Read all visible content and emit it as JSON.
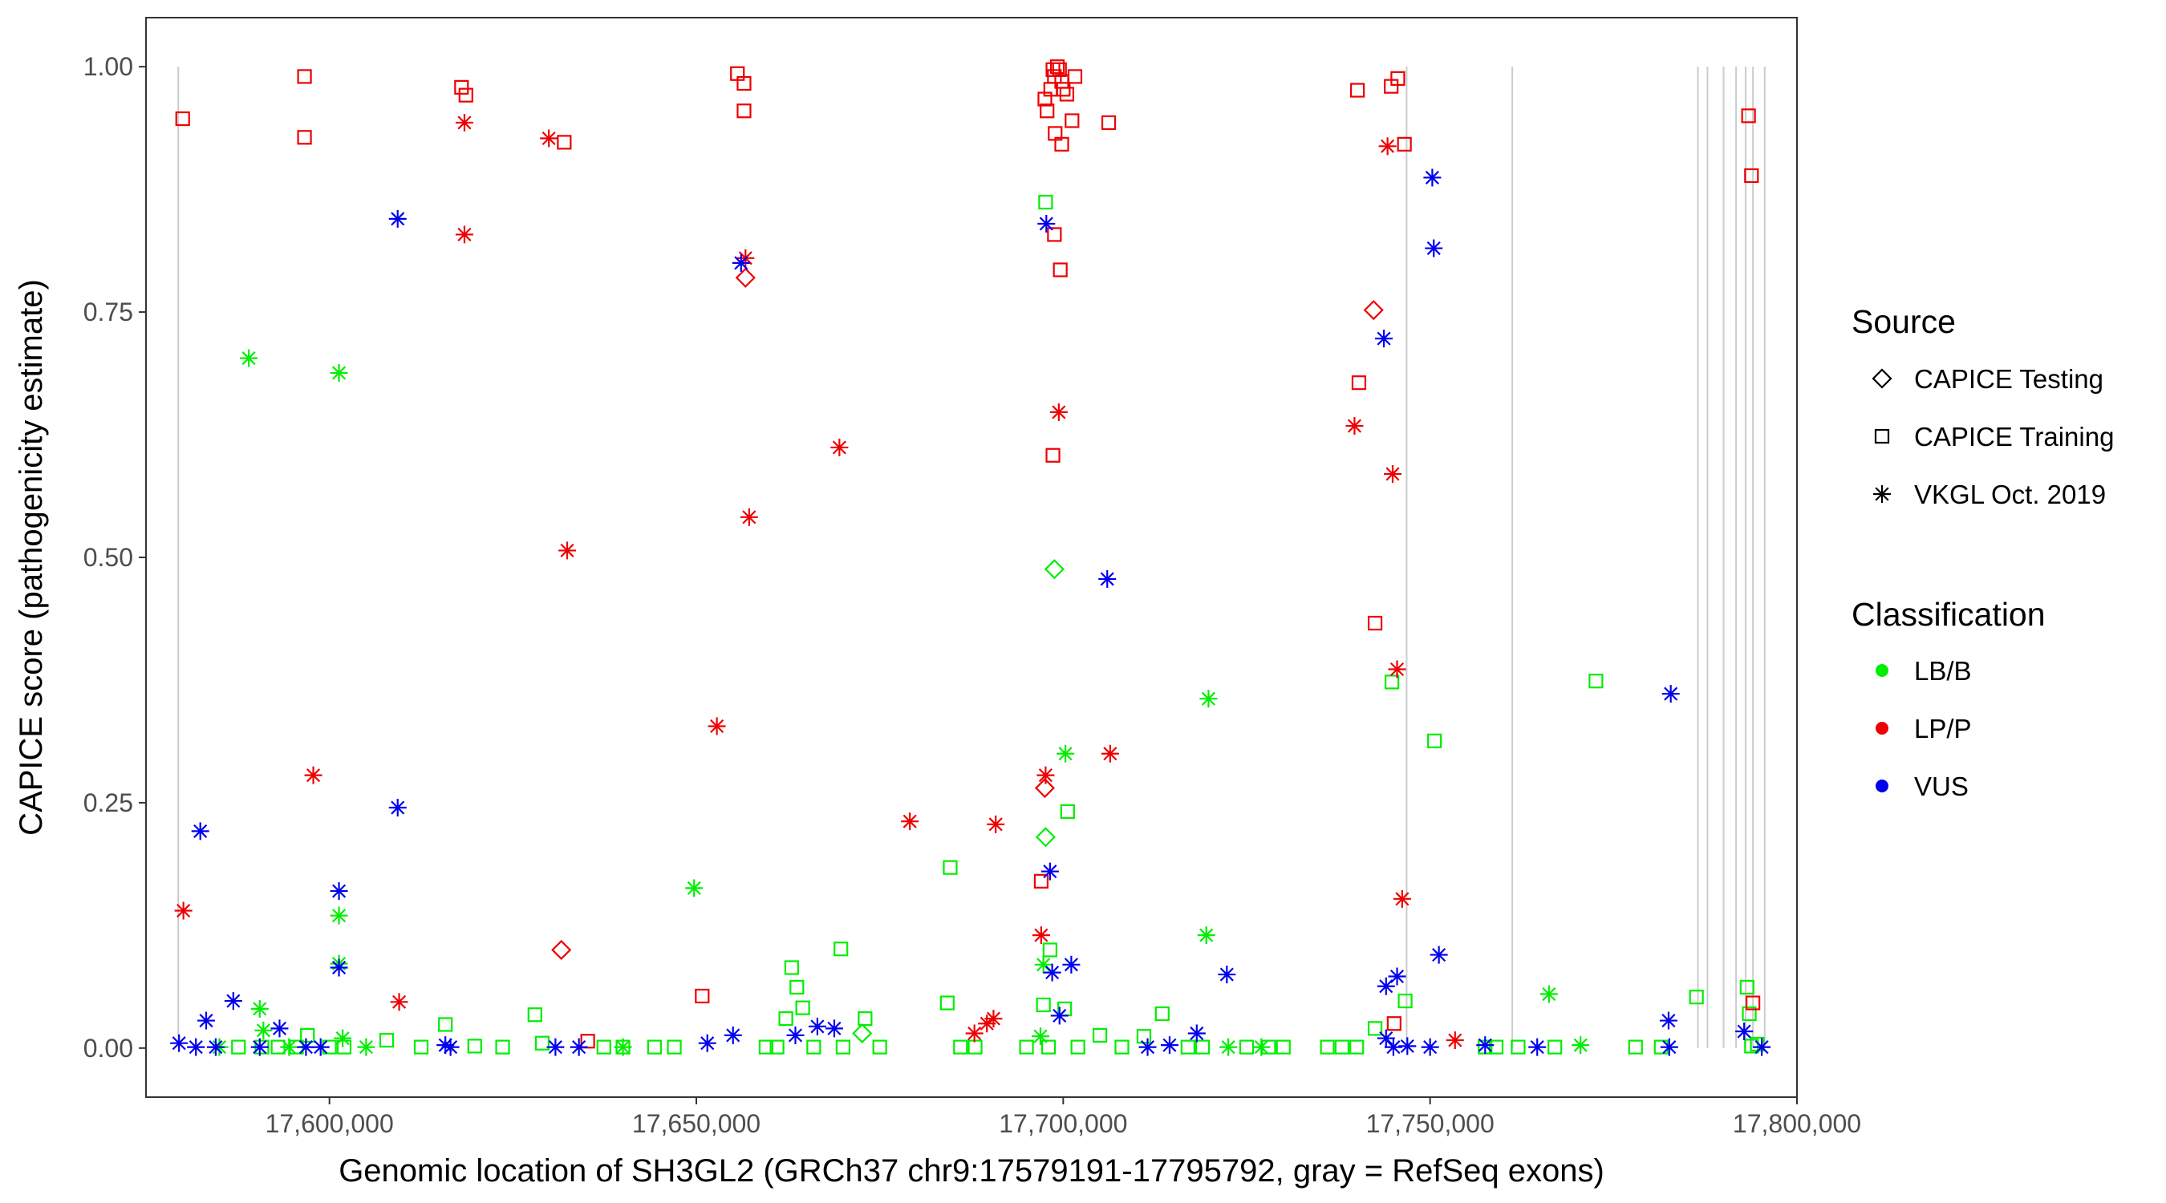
{
  "chart_data": {
    "type": "scatter",
    "title": "",
    "xlabel": "Genomic location of SH3GL2 (GRCh37 chr9:17579191-17795792, gray = RefSeq exons)",
    "ylabel": "CAPICE score (pathogenicity estimate)",
    "xlim": [
      17575000,
      17800000
    ],
    "ylim": [
      -0.05,
      1.05
    ],
    "x_ticks": [
      17600000,
      17650000,
      17700000,
      17750000,
      17800000
    ],
    "x_tick_labels": [
      "17,600,000",
      "17,650,000",
      "17,700,000",
      "17,750,000",
      "17,800,000"
    ],
    "y_ticks": [
      0,
      0.25,
      0.5,
      0.75,
      1.0
    ],
    "y_tick_labels": [
      "0.00",
      "0.25",
      "0.50",
      "0.75",
      "1.00"
    ],
    "exon_lines": [
      17579400,
      17746800,
      17761200,
      17786500,
      17787800,
      17790000,
      17791700,
      17793000,
      17794000,
      17795600
    ],
    "legend": {
      "source_title": "Source",
      "source_items": [
        {
          "label": "CAPICE Testing",
          "shape": "diamond"
        },
        {
          "label": "CAPICE Training",
          "shape": "square"
        },
        {
          "label": "VKGL Oct. 2019",
          "shape": "asterisk"
        }
      ],
      "class_title": "Classification",
      "class_items": [
        {
          "label": "LB/B",
          "color": "#00ee00"
        },
        {
          "label": "LP/P",
          "color": "#ee0000"
        },
        {
          "label": "VUS",
          "color": "#0000ee"
        }
      ]
    },
    "series": [
      {
        "name": "CAPICE Testing / LB/B",
        "shape": "diamond",
        "color": "#00ee00",
        "points": [
          [
            17697600,
            0.215
          ],
          [
            17698800,
            0.488
          ],
          [
            17672600,
            0.015
          ]
        ]
      },
      {
        "name": "CAPICE Testing / LP/P",
        "shape": "diamond",
        "color": "#ee0000",
        "points": [
          [
            17656700,
            0.785
          ],
          [
            17631600,
            0.1
          ],
          [
            17697500,
            0.265
          ],
          [
            17742300,
            0.752
          ]
        ]
      },
      {
        "name": "CAPICE Training / LB/B",
        "shape": "square",
        "color": "#00ee00",
        "points": [
          [
            17697600,
            0.862
          ],
          [
            17698200,
            0.1
          ],
          [
            17684600,
            0.184
          ],
          [
            17684200,
            0.046
          ],
          [
            17700600,
            0.241
          ],
          [
            17697300,
            0.044
          ],
          [
            17700200,
            0.04
          ],
          [
            17713500,
            0.035
          ],
          [
            17669700,
            0.101
          ],
          [
            17663000,
            0.082
          ],
          [
            17663700,
            0.062
          ],
          [
            17664500,
            0.041
          ],
          [
            17662200,
            0.03
          ],
          [
            17673000,
            0.03
          ],
          [
            17628000,
            0.034
          ],
          [
            17615800,
            0.024
          ],
          [
            17607800,
            0.008
          ],
          [
            17619800,
            0.002
          ],
          [
            17623600,
            0.001
          ],
          [
            17637400,
            0.001
          ],
          [
            17644300,
            0.001
          ],
          [
            17640000,
            0.001
          ],
          [
            17629000,
            0.005
          ],
          [
            17597000,
            0.013
          ],
          [
            17659500,
            0.001
          ],
          [
            17661000,
            0.001
          ],
          [
            17666000,
            0.001
          ],
          [
            17670000,
            0.001
          ],
          [
            17675000,
            0.001
          ],
          [
            17686000,
            0.001
          ],
          [
            17688000,
            0.001
          ],
          [
            17695000,
            0.001
          ],
          [
            17698000,
            0.001
          ],
          [
            17702000,
            0.001
          ],
          [
            17705000,
            0.013
          ],
          [
            17708000,
            0.001
          ],
          [
            17711000,
            0.012
          ],
          [
            17717000,
            0.001
          ],
          [
            17719000,
            0.001
          ],
          [
            17725000,
            0.001
          ],
          [
            17728000,
            0.001
          ],
          [
            17730000,
            0.001
          ],
          [
            17736000,
            0.001
          ],
          [
            17738000,
            0.001
          ],
          [
            17740000,
            0.001
          ],
          [
            17742500,
            0.02
          ],
          [
            17744800,
            0.373
          ],
          [
            17746600,
            0.048
          ],
          [
            17750600,
            0.313
          ],
          [
            17757500,
            0.001
          ],
          [
            17759000,
            0.001
          ],
          [
            17762000,
            0.001
          ],
          [
            17767000,
            0.001
          ],
          [
            17772600,
            0.374
          ],
          [
            17778000,
            0.001
          ],
          [
            17781500,
            0.001
          ],
          [
            17786300,
            0.052
          ],
          [
            17793200,
            0.062
          ],
          [
            17793500,
            0.035
          ],
          [
            17793800,
            0.002
          ],
          [
            17794600,
            0.004
          ],
          [
            17587600,
            0.001
          ],
          [
            17590800,
            0.001
          ],
          [
            17593000,
            0.001
          ],
          [
            17595500,
            0.001
          ],
          [
            17600000,
            0.001
          ],
          [
            17602000,
            0.001
          ],
          [
            17612500,
            0.001
          ],
          [
            17647000,
            0.001
          ]
        ]
      },
      {
        "name": "CAPICE Training / LP/P",
        "shape": "square",
        "color": "#ee0000",
        "points": [
          [
            17580000,
            0.947
          ],
          [
            17596600,
            0.99
          ],
          [
            17596600,
            0.928
          ],
          [
            17618000,
            0.979
          ],
          [
            17618600,
            0.971
          ],
          [
            17632000,
            0.923
          ],
          [
            17655600,
            0.993
          ],
          [
            17656500,
            0.983
          ],
          [
            17656500,
            0.955
          ],
          [
            17697500,
            0.967
          ],
          [
            17697800,
            0.955
          ],
          [
            17698300,
            0.977
          ],
          [
            17698600,
            0.997
          ],
          [
            17698800,
            0.99
          ],
          [
            17699200,
            1.0
          ],
          [
            17699500,
            0.997
          ],
          [
            17699800,
            0.985
          ],
          [
            17700000,
            0.977
          ],
          [
            17700500,
            0.972
          ],
          [
            17701600,
            0.99
          ],
          [
            17701200,
            0.945
          ],
          [
            17698900,
            0.932
          ],
          [
            17699800,
            0.921
          ],
          [
            17706200,
            0.943
          ],
          [
            17698800,
            0.829
          ],
          [
            17699600,
            0.793
          ],
          [
            17698600,
            0.604
          ],
          [
            17697000,
            0.17
          ],
          [
            17650800,
            0.053
          ],
          [
            17635200,
            0.007
          ],
          [
            17740100,
            0.976
          ],
          [
            17744700,
            0.98
          ],
          [
            17745600,
            0.988
          ],
          [
            17746500,
            0.921
          ],
          [
            17740300,
            0.678
          ],
          [
            17742500,
            0.433
          ],
          [
            17745100,
            0.025
          ],
          [
            17793400,
            0.95
          ],
          [
            17793800,
            0.889
          ],
          [
            17794000,
            0.046
          ]
        ]
      },
      {
        "name": "CAPICE Training / VUS",
        "shape": "square",
        "color": "#0000ee",
        "points": []
      },
      {
        "name": "VKGL Oct. 2019 / LB/B",
        "shape": "asterisk",
        "color": "#00ee00",
        "points": [
          [
            17589000,
            0.703
          ],
          [
            17601300,
            0.688
          ],
          [
            17649700,
            0.163
          ],
          [
            17700300,
            0.3
          ],
          [
            17719800,
            0.356
          ],
          [
            17719500,
            0.115
          ],
          [
            17601300,
            0.135
          ],
          [
            17601300,
            0.086
          ],
          [
            17766200,
            0.055
          ],
          [
            17590500,
            0.04
          ],
          [
            17591000,
            0.018
          ],
          [
            17601800,
            0.01
          ],
          [
            17722500,
            0.001
          ],
          [
            17727000,
            0.001
          ],
          [
            17770500,
            0.003
          ],
          [
            17696900,
            0.012
          ],
          [
            17697300,
            0.085
          ],
          [
            17605000,
            0.001
          ],
          [
            17594500,
            0.001
          ],
          [
            17585000,
            0.001
          ],
          [
            17640000,
            0.001
          ]
        ]
      },
      {
        "name": "VKGL Oct. 2019 / LP/P",
        "shape": "asterisk",
        "color": "#ee0000",
        "points": [
          [
            17618400,
            0.943
          ],
          [
            17618400,
            0.829
          ],
          [
            17629900,
            0.927
          ],
          [
            17597800,
            0.278
          ],
          [
            17580100,
            0.14
          ],
          [
            17609500,
            0.047
          ],
          [
            17632400,
            0.507
          ],
          [
            17652800,
            0.328
          ],
          [
            17656700,
            0.805
          ],
          [
            17657200,
            0.541
          ],
          [
            17669500,
            0.612
          ],
          [
            17679100,
            0.231
          ],
          [
            17690800,
            0.228
          ],
          [
            17689600,
            0.025
          ],
          [
            17690500,
            0.03
          ],
          [
            17697600,
            0.278
          ],
          [
            17699400,
            0.648
          ],
          [
            17706400,
            0.3
          ],
          [
            17697000,
            0.115
          ],
          [
            17739700,
            0.634
          ],
          [
            17744200,
            0.919
          ],
          [
            17744900,
            0.585
          ],
          [
            17745500,
            0.386
          ],
          [
            17746200,
            0.152
          ],
          [
            17753400,
            0.008
          ],
          [
            17687900,
            0.015
          ]
        ]
      },
      {
        "name": "VKGL Oct. 2019 / VUS",
        "shape": "asterisk",
        "color": "#0000ee",
        "points": [
          [
            17609300,
            0.845
          ],
          [
            17609300,
            0.245
          ],
          [
            17582400,
            0.221
          ],
          [
            17601300,
            0.16
          ],
          [
            17601300,
            0.082
          ],
          [
            17586900,
            0.048
          ],
          [
            17583200,
            0.028
          ],
          [
            17593200,
            0.02
          ],
          [
            17656100,
            0.8
          ],
          [
            17697700,
            0.84
          ],
          [
            17698200,
            0.18
          ],
          [
            17698500,
            0.077
          ],
          [
            17701100,
            0.085
          ],
          [
            17706000,
            0.478
          ],
          [
            17699500,
            0.033
          ],
          [
            17743700,
            0.723
          ],
          [
            17750300,
            0.887
          ],
          [
            17750500,
            0.815
          ],
          [
            17744000,
            0.063
          ],
          [
            17745500,
            0.073
          ],
          [
            17751200,
            0.095
          ],
          [
            17782800,
            0.361
          ],
          [
            17782500,
            0.028
          ],
          [
            17782600,
            0.001
          ],
          [
            17722300,
            0.075
          ],
          [
            17718200,
            0.015
          ],
          [
            17711500,
            0.001
          ],
          [
            17714500,
            0.003
          ],
          [
            17750000,
            0.001
          ],
          [
            17757500,
            0.003
          ],
          [
            17764600,
            0.001
          ],
          [
            17792800,
            0.017
          ],
          [
            17579500,
            0.005
          ],
          [
            17581800,
            0.001
          ],
          [
            17584500,
            0.001
          ],
          [
            17590500,
            0.001
          ],
          [
            17596800,
            0.001
          ],
          [
            17598800,
            0.001
          ],
          [
            17615800,
            0.003
          ],
          [
            17616500,
            0.001
          ],
          [
            17630800,
            0.001
          ],
          [
            17634000,
            0.001
          ],
          [
            17651500,
            0.005
          ],
          [
            17655000,
            0.013
          ],
          [
            17663500,
            0.013
          ],
          [
            17666500,
            0.022
          ],
          [
            17668800,
            0.02
          ],
          [
            17745000,
            0.001
          ],
          [
            17744000,
            0.01
          ],
          [
            17746900,
            0.002
          ],
          [
            17795200,
            0.001
          ]
        ]
      }
    ]
  }
}
